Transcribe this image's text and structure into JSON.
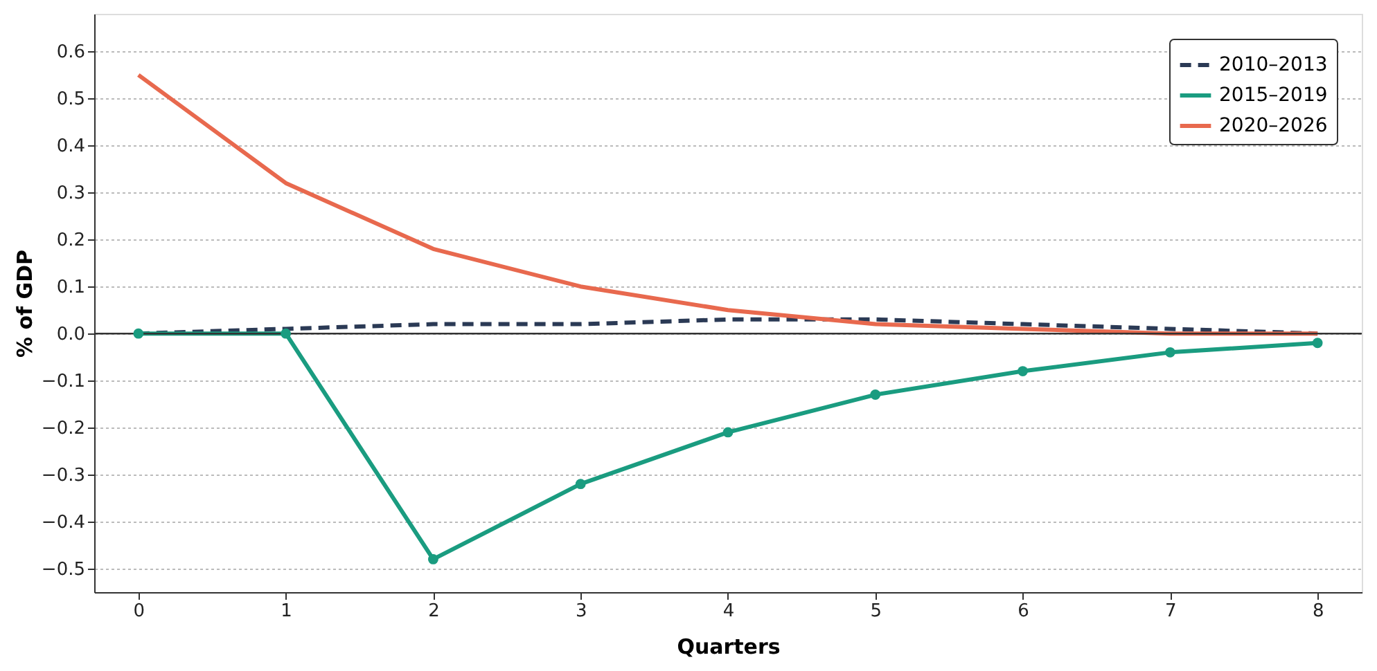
{
  "chart_data": {
    "type": "line",
    "xlabel": "Quarters",
    "ylabel": "% of GDP",
    "x": [
      0,
      1,
      2,
      3,
      4,
      5,
      6,
      7,
      8
    ],
    "xlim": [
      -0.3,
      8.3
    ],
    "xticks": [
      0,
      1,
      2,
      3,
      4,
      5,
      6,
      7,
      8
    ],
    "ylim": [
      -0.55,
      0.68
    ],
    "yticks": [
      {
        "value": -0.5,
        "label": "−0.5"
      },
      {
        "value": -0.4,
        "label": "−0.4"
      },
      {
        "value": -0.3,
        "label": "−0.3"
      },
      {
        "value": -0.2,
        "label": "−0.2"
      },
      {
        "value": -0.1,
        "label": "−0.1"
      },
      {
        "value": 0,
        "label": "0.0"
      },
      {
        "value": 0.1,
        "label": "0.1"
      },
      {
        "value": 0.2,
        "label": "0.2"
      },
      {
        "value": 0.3,
        "label": "0.3"
      },
      {
        "value": 0.4,
        "label": "0.4"
      },
      {
        "value": 0.5,
        "label": "0.5"
      },
      {
        "value": 0.6,
        "label": "0.6"
      }
    ],
    "series": [
      {
        "name": "2010–2013",
        "color": "#2b3a55",
        "line_style": "dashed",
        "marker": "none",
        "values": [
          0,
          0.01,
          0.02,
          0.02,
          0.03,
          0.03,
          0.02,
          0.01,
          0.0
        ]
      },
      {
        "name": "2015–2019",
        "color": "#1a9c80",
        "line_style": "solid",
        "marker": "circle",
        "values": [
          0,
          0,
          -0.48,
          -0.32,
          -0.21,
          -0.13,
          -0.08,
          -0.04,
          -0.02
        ]
      },
      {
        "name": "2020–2026",
        "color": "#e8694e",
        "line_style": "solid",
        "marker": "none",
        "values": [
          0.55,
          0.32,
          0.18,
          0.1,
          0.05,
          0.02,
          0.01,
          0.0,
          0.0
        ]
      }
    ],
    "ref_lines": [
      {
        "axis": "y",
        "value": 0,
        "color": "#333333"
      }
    ],
    "grid": "y",
    "legend": "top right"
  }
}
